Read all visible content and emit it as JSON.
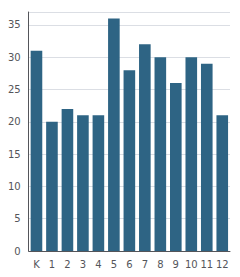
{
  "chart_data": {
    "type": "bar",
    "categories": [
      "K",
      "1",
      "2",
      "3",
      "4",
      "5",
      "6",
      "7",
      "8",
      "9",
      "10",
      "11",
      "12"
    ],
    "values": [
      31,
      20,
      22,
      21,
      21,
      36,
      28,
      32,
      30,
      26,
      30,
      29,
      21
    ],
    "color": "#2e6484",
    "ylim": [
      0,
      37
    ],
    "yticks": [
      0,
      5,
      10,
      15,
      20,
      25,
      30,
      35
    ],
    "grid": true
  }
}
